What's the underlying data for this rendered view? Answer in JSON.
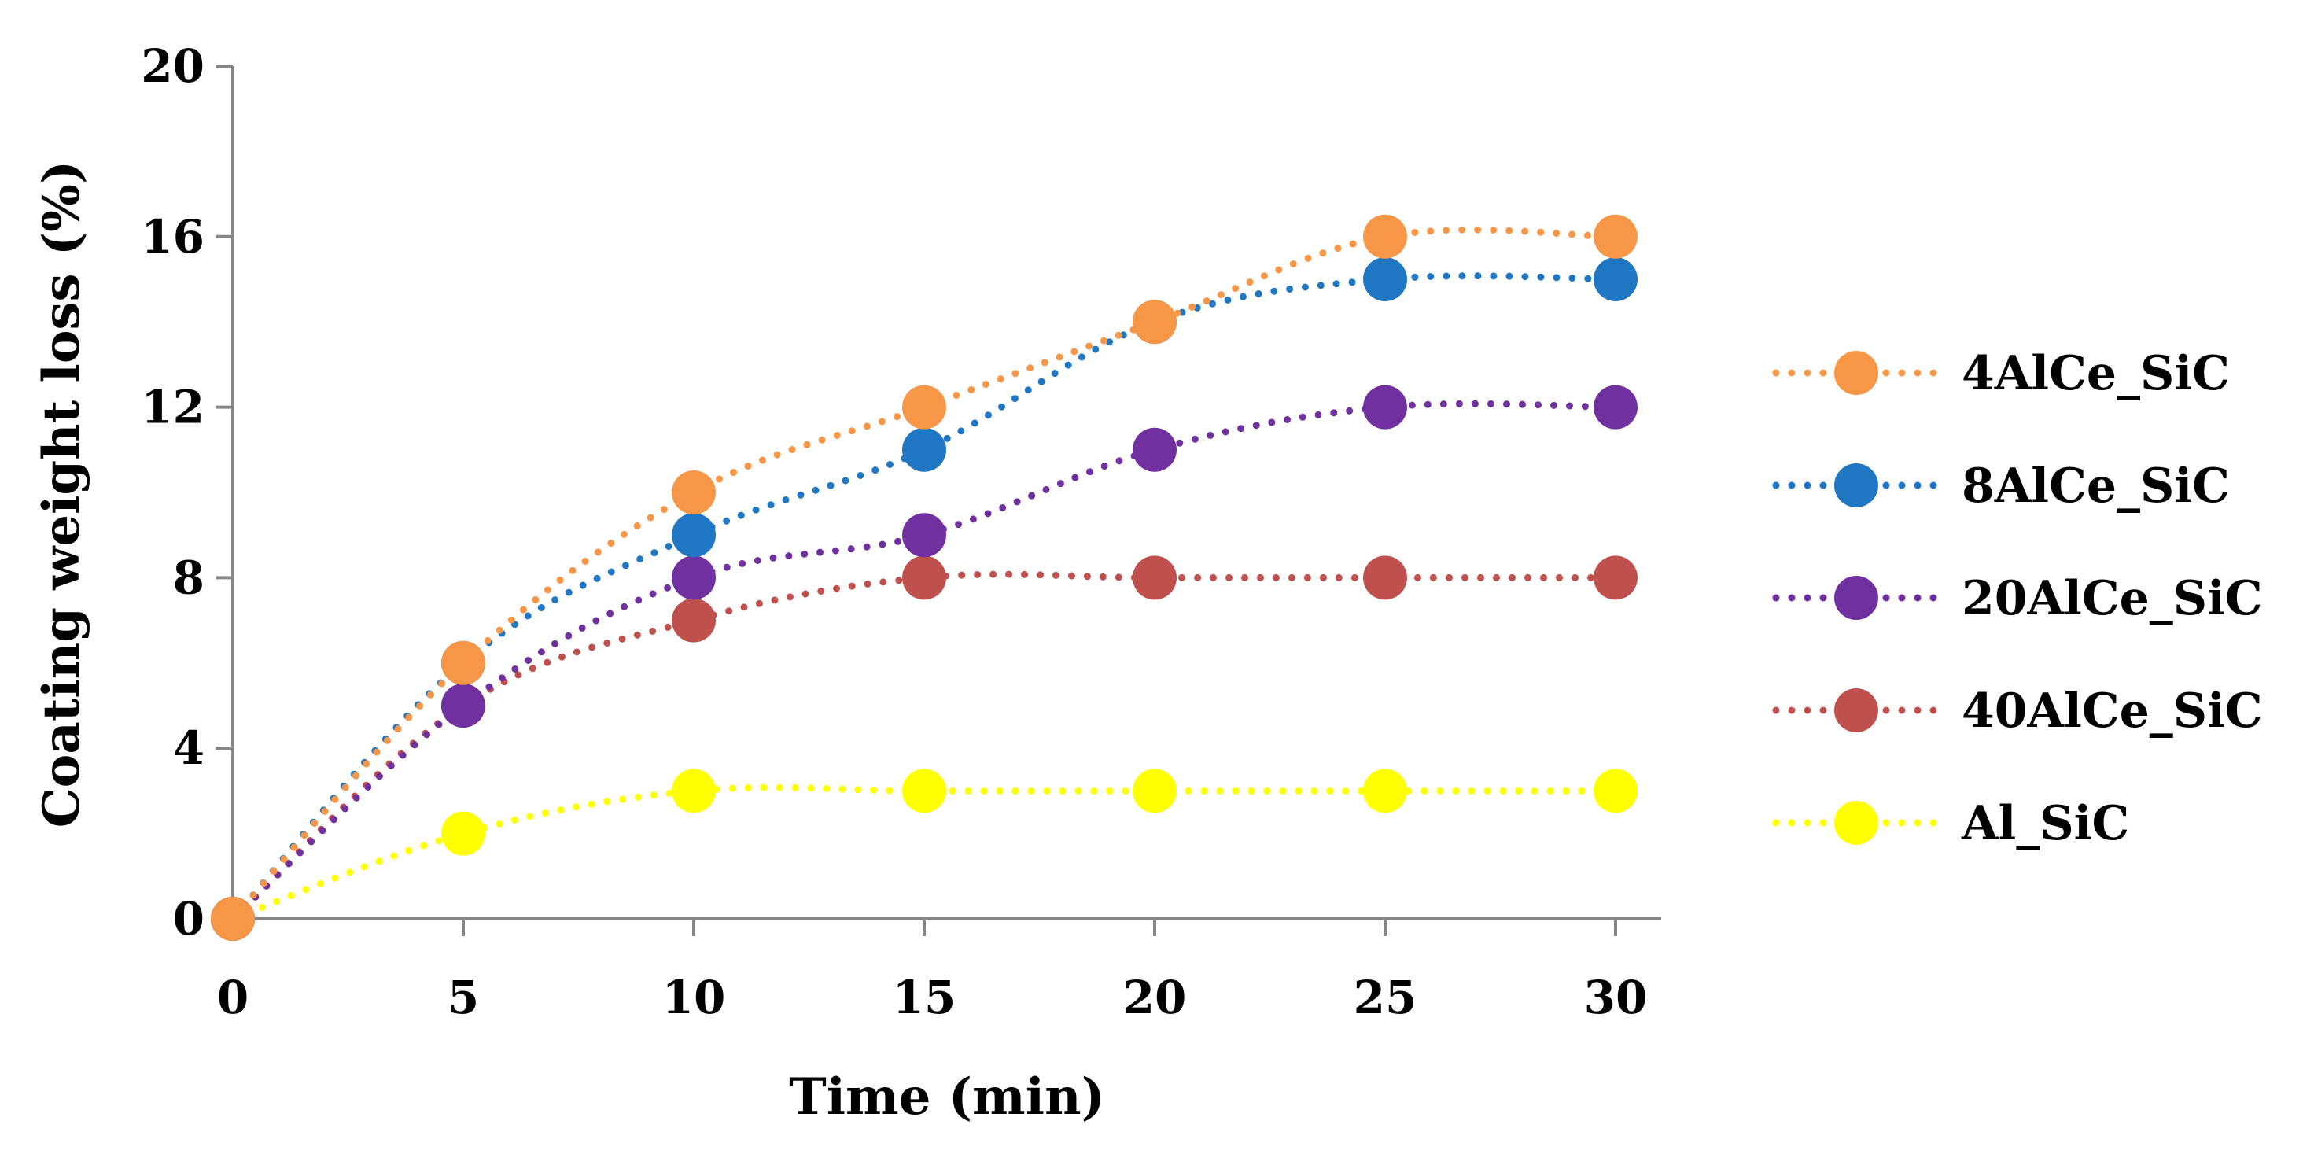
{
  "chart_data": {
    "type": "line",
    "title": "",
    "xlabel": "Time (min)",
    "ylabel": "Coating weight loss (%)",
    "x": [
      0,
      5,
      10,
      15,
      20,
      25,
      30
    ],
    "xlim": [
      0,
      30
    ],
    "ylim": [
      0,
      20
    ],
    "xticks": [
      "0",
      "5",
      "10",
      "15",
      "20",
      "25",
      "30"
    ],
    "yticks": [
      "0",
      "4",
      "8",
      "12",
      "16",
      "20"
    ],
    "xtick_values": [
      0,
      5,
      10,
      15,
      20,
      25,
      30
    ],
    "ytick_values": [
      0,
      4,
      8,
      12,
      16,
      20
    ],
    "grid": false,
    "line_style": "dotted",
    "legend_position": "right",
    "series": [
      {
        "name": "4AlCe_SiC",
        "color": "#F79646",
        "values": [
          0,
          6,
          10,
          12,
          14,
          16,
          16
        ]
      },
      {
        "name": "8AlCe_SiC",
        "color": "#1F77C4",
        "values": [
          0,
          6,
          9,
          11,
          14,
          15,
          15
        ]
      },
      {
        "name": "20AlCe_SiC",
        "color": "#7030A0",
        "values": [
          0,
          5,
          8,
          9,
          11,
          12,
          12
        ]
      },
      {
        "name": "40AlCe_SiC",
        "color": "#C0504D",
        "values": [
          0,
          5,
          7,
          8,
          8,
          8,
          8
        ]
      },
      {
        "name": "Al_SiC",
        "color": "#FFFF00",
        "values": [
          0,
          2,
          3,
          3,
          3,
          3,
          3
        ]
      }
    ]
  }
}
